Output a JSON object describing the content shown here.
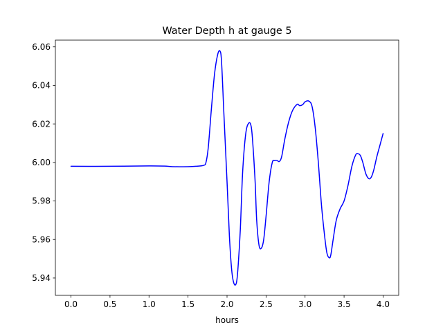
{
  "chart_data": {
    "type": "line",
    "title": "Water Depth h at gauge 5",
    "xlabel": "hours",
    "ylabel": "",
    "xlim": [
      -0.2,
      4.2
    ],
    "ylim": [
      5.931,
      6.0635
    ],
    "xticks": [
      0.0,
      0.5,
      1.0,
      1.5,
      2.0,
      2.5,
      3.0,
      3.5,
      4.0
    ],
    "xtick_labels": [
      "0.0",
      "0.5",
      "1.0",
      "1.5",
      "2.0",
      "2.5",
      "3.0",
      "3.5",
      "4.0"
    ],
    "yticks": [
      5.94,
      5.96,
      5.98,
      6.0,
      6.02,
      6.04,
      6.06
    ],
    "ytick_labels": [
      "5.94",
      "5.96",
      "5.98",
      "6.00",
      "6.02",
      "6.04",
      "6.06"
    ],
    "grid": false,
    "series": [
      {
        "color": "#0000ff",
        "x": [
          0.0,
          0.5,
          1.0,
          1.2,
          1.3,
          1.5,
          1.6,
          1.7,
          1.73,
          1.76,
          1.8,
          1.84,
          1.88,
          1.91,
          1.93,
          1.96,
          2.0,
          2.03,
          2.06,
          2.09,
          2.12,
          2.14,
          2.17,
          2.2,
          2.24,
          2.28,
          2.31,
          2.33,
          2.36,
          2.38,
          2.41,
          2.44,
          2.47,
          2.5,
          2.54,
          2.58,
          2.61,
          2.64,
          2.67,
          2.7,
          2.74,
          2.79,
          2.84,
          2.9,
          2.93,
          2.97,
          3.0,
          3.05,
          3.09,
          3.13,
          3.17,
          3.21,
          3.25,
          3.28,
          3.31,
          3.33,
          3.36,
          3.4,
          3.45,
          3.5,
          3.55,
          3.6,
          3.65,
          3.68,
          3.71,
          3.74,
          3.78,
          3.82,
          3.85,
          3.88,
          3.92,
          3.96,
          4.0
        ],
        "y": [
          5.998,
          5.998,
          5.9982,
          5.9981,
          5.9978,
          5.9978,
          5.998,
          5.9985,
          6.0,
          6.008,
          6.028,
          6.046,
          6.056,
          6.0578,
          6.052,
          6.025,
          5.99,
          5.962,
          5.944,
          5.937,
          5.9375,
          5.945,
          5.965,
          5.995,
          6.015,
          6.0205,
          6.0185,
          6.01,
          5.99,
          5.97,
          5.957,
          5.9555,
          5.96,
          5.972,
          5.99,
          6.0,
          6.001,
          6.001,
          6.0005,
          6.003,
          6.012,
          6.021,
          6.027,
          6.0302,
          6.0295,
          6.03,
          6.0315,
          6.0318,
          6.029,
          6.018,
          6.0,
          5.978,
          5.962,
          5.953,
          5.9505,
          5.952,
          5.96,
          5.97,
          5.976,
          5.98,
          5.988,
          5.998,
          6.004,
          6.0045,
          6.0035,
          6.0,
          5.994,
          5.9915,
          5.9925,
          5.996,
          6.003,
          6.009,
          6.015
        ]
      }
    ]
  }
}
